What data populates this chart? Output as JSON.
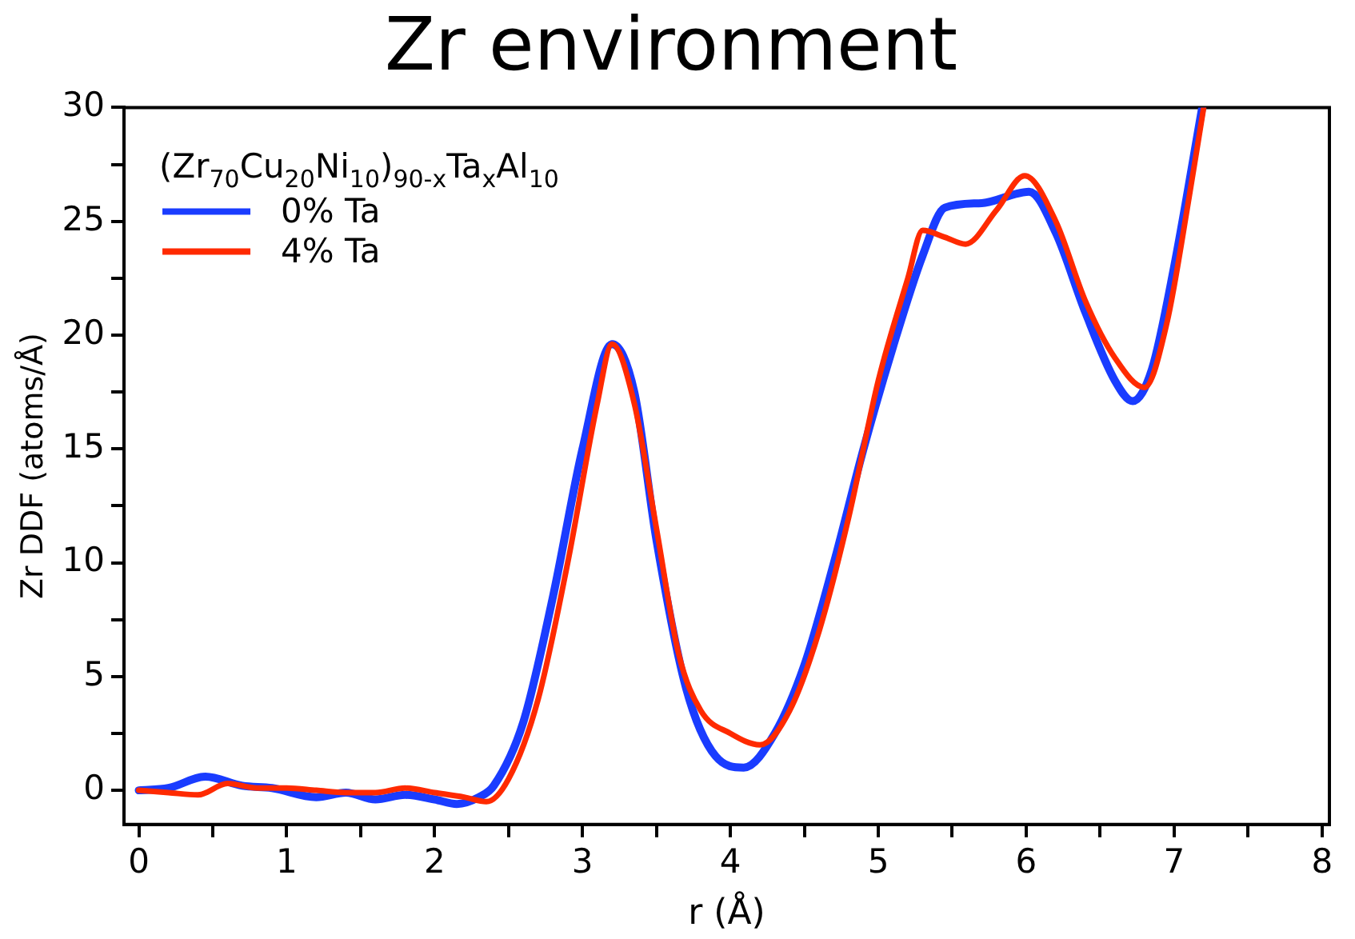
{
  "chart_data": {
    "type": "line",
    "title": "Zr environment",
    "xlabel": "r (Å)",
    "ylabel": "Zr DDF (atoms/Å)",
    "legend_title": "(Zr$_{70}$Cu$_{20}$Ni$_{10}$)$_{90-x}$Ta$_{x}$Al$_{10}$",
    "legend": "top left",
    "grid": false,
    "marker": "none",
    "line_style": "solid",
    "xlim": [
      -0.1,
      8.05
    ],
    "xticks": [
      0,
      {
        "value": 0.5,
        "label": null
      },
      1,
      {
        "value": 1.5,
        "label": null
      },
      2,
      {
        "value": 2.5,
        "label": null
      },
      3,
      {
        "value": 3.5,
        "label": null
      },
      4,
      {
        "value": 4.5,
        "label": null
      },
      5,
      {
        "value": 5.5,
        "label": null
      },
      6,
      {
        "value": 6.5,
        "label": null
      },
      7,
      {
        "value": 7.5,
        "label": null
      },
      8
    ],
    "ylim": [
      -1.5,
      30
    ],
    "yticks": [
      0,
      {
        "value": 2.5,
        "label": null
      },
      5,
      {
        "value": 7.5,
        "label": null
      },
      10,
      {
        "value": 12.5,
        "label": null
      },
      15,
      {
        "value": 17.5,
        "label": null
      },
      20,
      {
        "value": 22.5,
        "label": null
      },
      25,
      {
        "value": 27.5,
        "label": null
      },
      30
    ],
    "series": [
      {
        "name": "0% Ta",
        "color": "#1a3cff",
        "x": [
          0,
          0.2,
          0.45,
          0.7,
          0.9,
          1.2,
          1.4,
          1.6,
          1.8,
          2.0,
          2.15,
          2.3,
          2.4,
          2.6,
          2.8,
          3.0,
          3.2,
          3.35,
          3.5,
          3.7,
          3.9,
          4.09,
          4.3,
          4.5,
          4.7,
          4.9,
          5.1,
          5.3,
          5.45,
          5.7,
          6.02,
          6.2,
          6.4,
          6.6,
          6.72,
          6.85,
          7.0,
          7.19
        ],
        "values": [
          0,
          0.1,
          0.6,
          0.2,
          0.1,
          -0.3,
          -0.1,
          -0.4,
          -0.2,
          -0.4,
          -0.6,
          -0.3,
          0.2,
          3,
          8.5,
          15,
          19.6,
          17.5,
          11,
          4.5,
          1.5,
          1.0,
          2.5,
          5.5,
          10,
          15,
          19.5,
          23.5,
          25.6,
          25.8,
          26.3,
          24.5,
          21,
          18,
          17.1,
          18.5,
          23,
          30
        ]
      },
      {
        "name": "4% Ta",
        "color": "#ff2a00",
        "x": [
          0,
          0.2,
          0.4,
          0.6,
          0.8,
          1.0,
          1.2,
          1.4,
          1.6,
          1.8,
          2.0,
          2.2,
          2.35,
          2.5,
          2.7,
          2.9,
          3.1,
          3.2,
          3.35,
          3.5,
          3.65,
          3.8,
          4.0,
          4.2,
          4.4,
          4.6,
          4.8,
          5.0,
          5.2,
          5.3,
          5.45,
          5.59,
          5.8,
          5.99,
          6.2,
          6.4,
          6.6,
          6.8,
          6.95,
          7.1,
          7.2
        ],
        "values": [
          0,
          -0.1,
          -0.2,
          0.3,
          0.1,
          0.1,
          0,
          -0.1,
          -0.1,
          0.1,
          -0.1,
          -0.3,
          -0.5,
          0.5,
          4,
          10,
          17,
          19.6,
          17.0,
          11.5,
          6,
          3.5,
          2.5,
          2.0,
          3.5,
          7,
          12,
          18,
          22.5,
          24.6,
          24.3,
          24.0,
          25.5,
          27.0,
          25,
          21.5,
          19,
          17.7,
          20.5,
          26,
          30
        ]
      }
    ]
  }
}
